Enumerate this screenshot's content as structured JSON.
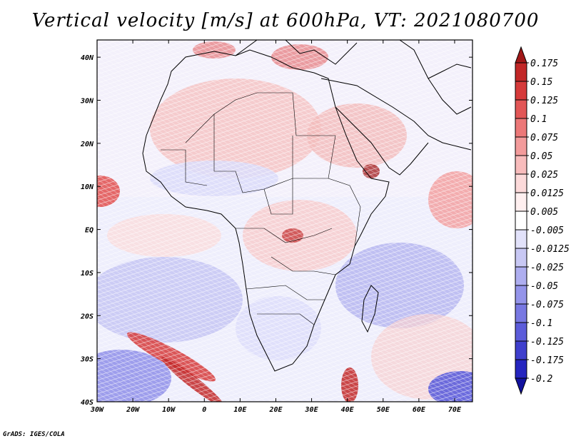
{
  "title": "Vertical velocity [m/s] at 600hPa, VT: 2021080700",
  "credit": "GrADS: IGES/COLA",
  "map": {
    "type": "filled-contour-map",
    "variable": "Vertical velocity",
    "units": "m/s",
    "level": "600hPa",
    "valid_time": "2021080700",
    "lon_ticks": [
      "30W",
      "20W",
      "10W",
      "0",
      "10E",
      "20E",
      "30E",
      "40E",
      "50E",
      "60E",
      "70E"
    ],
    "lat_ticks": [
      "40S",
      "30S",
      "20S",
      "10S",
      "EQ",
      "10N",
      "20N",
      "30N",
      "40N"
    ],
    "lon_range": [
      -30,
      75
    ],
    "lat_range": [
      -40,
      44
    ]
  },
  "colorbar": {
    "levels": [
      "0.175",
      "0.15",
      "0.125",
      "0.1",
      "0.075",
      "0.05",
      "0.025",
      "0.0125",
      "0.005",
      "-0.005",
      "-0.0125",
      "-0.025",
      "-0.05",
      "-0.075",
      "-0.1",
      "-0.125",
      "-0.175",
      "-0.2"
    ],
    "colors": [
      "#a11818",
      "#c22727",
      "#d63a3a",
      "#e25656",
      "#ec7878",
      "#f39b9b",
      "#f8bcbc",
      "#fcdada",
      "#fff0f0",
      "#ffffff",
      "#e2e2fa",
      "#c8c8f4",
      "#aeaef0",
      "#9494ea",
      "#7878e2",
      "#5c5cda",
      "#3f3fcd",
      "#2525bf",
      "#12129e"
    ]
  }
}
